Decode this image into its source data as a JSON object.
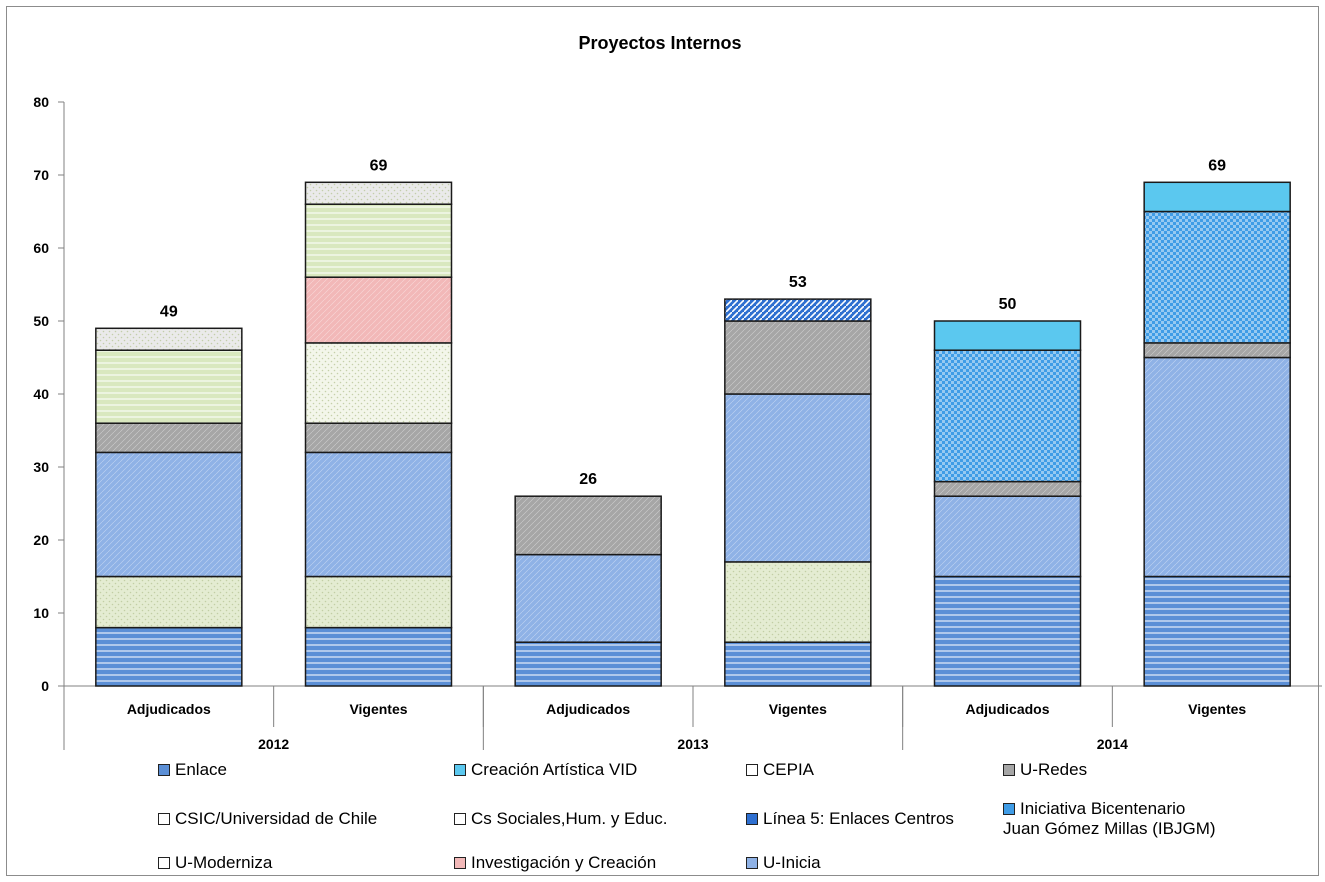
{
  "chart_data": {
    "type": "bar",
    "stacked": true,
    "title": "Proyectos Internos",
    "xlabel": "",
    "ylabel": "",
    "ylim": [
      0,
      80
    ],
    "yticks": [
      0,
      10,
      20,
      30,
      40,
      50,
      60,
      70,
      80
    ],
    "categories": [
      "Adjudicados",
      "Vigentes",
      "Adjudicados",
      "Vigentes",
      "Adjudicados",
      "Vigentes"
    ],
    "groups": [
      {
        "label": "2012",
        "span": 2
      },
      {
        "label": "2013",
        "span": 2
      },
      {
        "label": "2014",
        "span": 2
      }
    ],
    "totals": [
      49,
      69,
      26,
      53,
      50,
      69
    ],
    "series": [
      {
        "name": "Enlace",
        "color": "#5b8fd6",
        "pattern": "hstripe",
        "values": [
          8,
          8,
          6,
          6,
          15,
          15
        ]
      },
      {
        "name": "CSIC/Universidad de Chile",
        "color": "#e4ecd2",
        "pattern": "dots",
        "values": [
          7,
          7,
          0,
          11,
          0,
          0
        ]
      },
      {
        "name": "U-Inicia",
        "color": "#8fb2e6",
        "pattern": "fine",
        "values": [
          17,
          17,
          12,
          23,
          11,
          30
        ]
      },
      {
        "name": "U-Redes",
        "color": "#a6a6a6",
        "pattern": "fine",
        "values": [
          4,
          4,
          8,
          10,
          2,
          2
        ]
      },
      {
        "name": "Iniciativa Bicentenario Juan Gómez Millas (IBJGM)",
        "color": "#3f9ce6",
        "pattern": "check",
        "values": [
          0,
          0,
          0,
          0,
          18,
          18
        ]
      },
      {
        "name": "Cs Sociales,Hum. y  Educ.",
        "color": "#f3f6ea",
        "pattern": "dots",
        "values": [
          0,
          11,
          0,
          0,
          0,
          0
        ]
      },
      {
        "name": "Investigación y Creación",
        "color": "#f2b8b8",
        "pattern": "fine",
        "values": [
          0,
          9,
          0,
          0,
          0,
          0
        ]
      },
      {
        "name": "U-Moderniza",
        "color": "#d9e8bf",
        "pattern": "hstripe",
        "values": [
          10,
          10,
          0,
          0,
          0,
          0
        ]
      },
      {
        "name": "CEPIA",
        "color": "#eaeaea",
        "pattern": "dots",
        "values": [
          3,
          3,
          0,
          0,
          0,
          0
        ]
      },
      {
        "name": "Línea 5: Enlaces Centros",
        "color": "#2e6fd0",
        "pattern": "diag",
        "values": [
          0,
          0,
          0,
          3,
          0,
          0
        ]
      },
      {
        "name": "Creación Artística  VID",
        "color": "#5bc8ef",
        "pattern": "solid",
        "values": [
          0,
          0,
          0,
          0,
          4,
          4
        ]
      }
    ],
    "legend": {
      "placement": "bottom",
      "items": [
        {
          "text": "Enlace",
          "swatch": "#5b8fd6"
        },
        {
          "text": "Creación Artística  VID",
          "swatch": "#5bc8ef"
        },
        {
          "text": "CEPIA",
          "swatch": "#ffffff"
        },
        {
          "text": "U-Redes",
          "swatch": "#a6a6a6"
        },
        {
          "text": "CSIC/Universidad de Chile",
          "swatch": "#ffffff"
        },
        {
          "text": "Cs Sociales,Hum. y  Educ.",
          "swatch": "#ffffff"
        },
        {
          "text": "Línea 5: Enlaces Centros",
          "swatch": "#2e6fd0"
        },
        {
          "text": "Iniciativa Bicentenario",
          "text2": "Juan Gómez Millas (IBJGM)",
          "swatch": "#3f9ce6"
        },
        {
          "text": "U-Moderniza",
          "swatch": "#ffffff"
        },
        {
          "text": "Investigación y Creación",
          "swatch": "#f2b8b8"
        },
        {
          "text": "U-Inicia",
          "swatch": "#8fb2e6"
        }
      ]
    },
    "grid": false
  }
}
